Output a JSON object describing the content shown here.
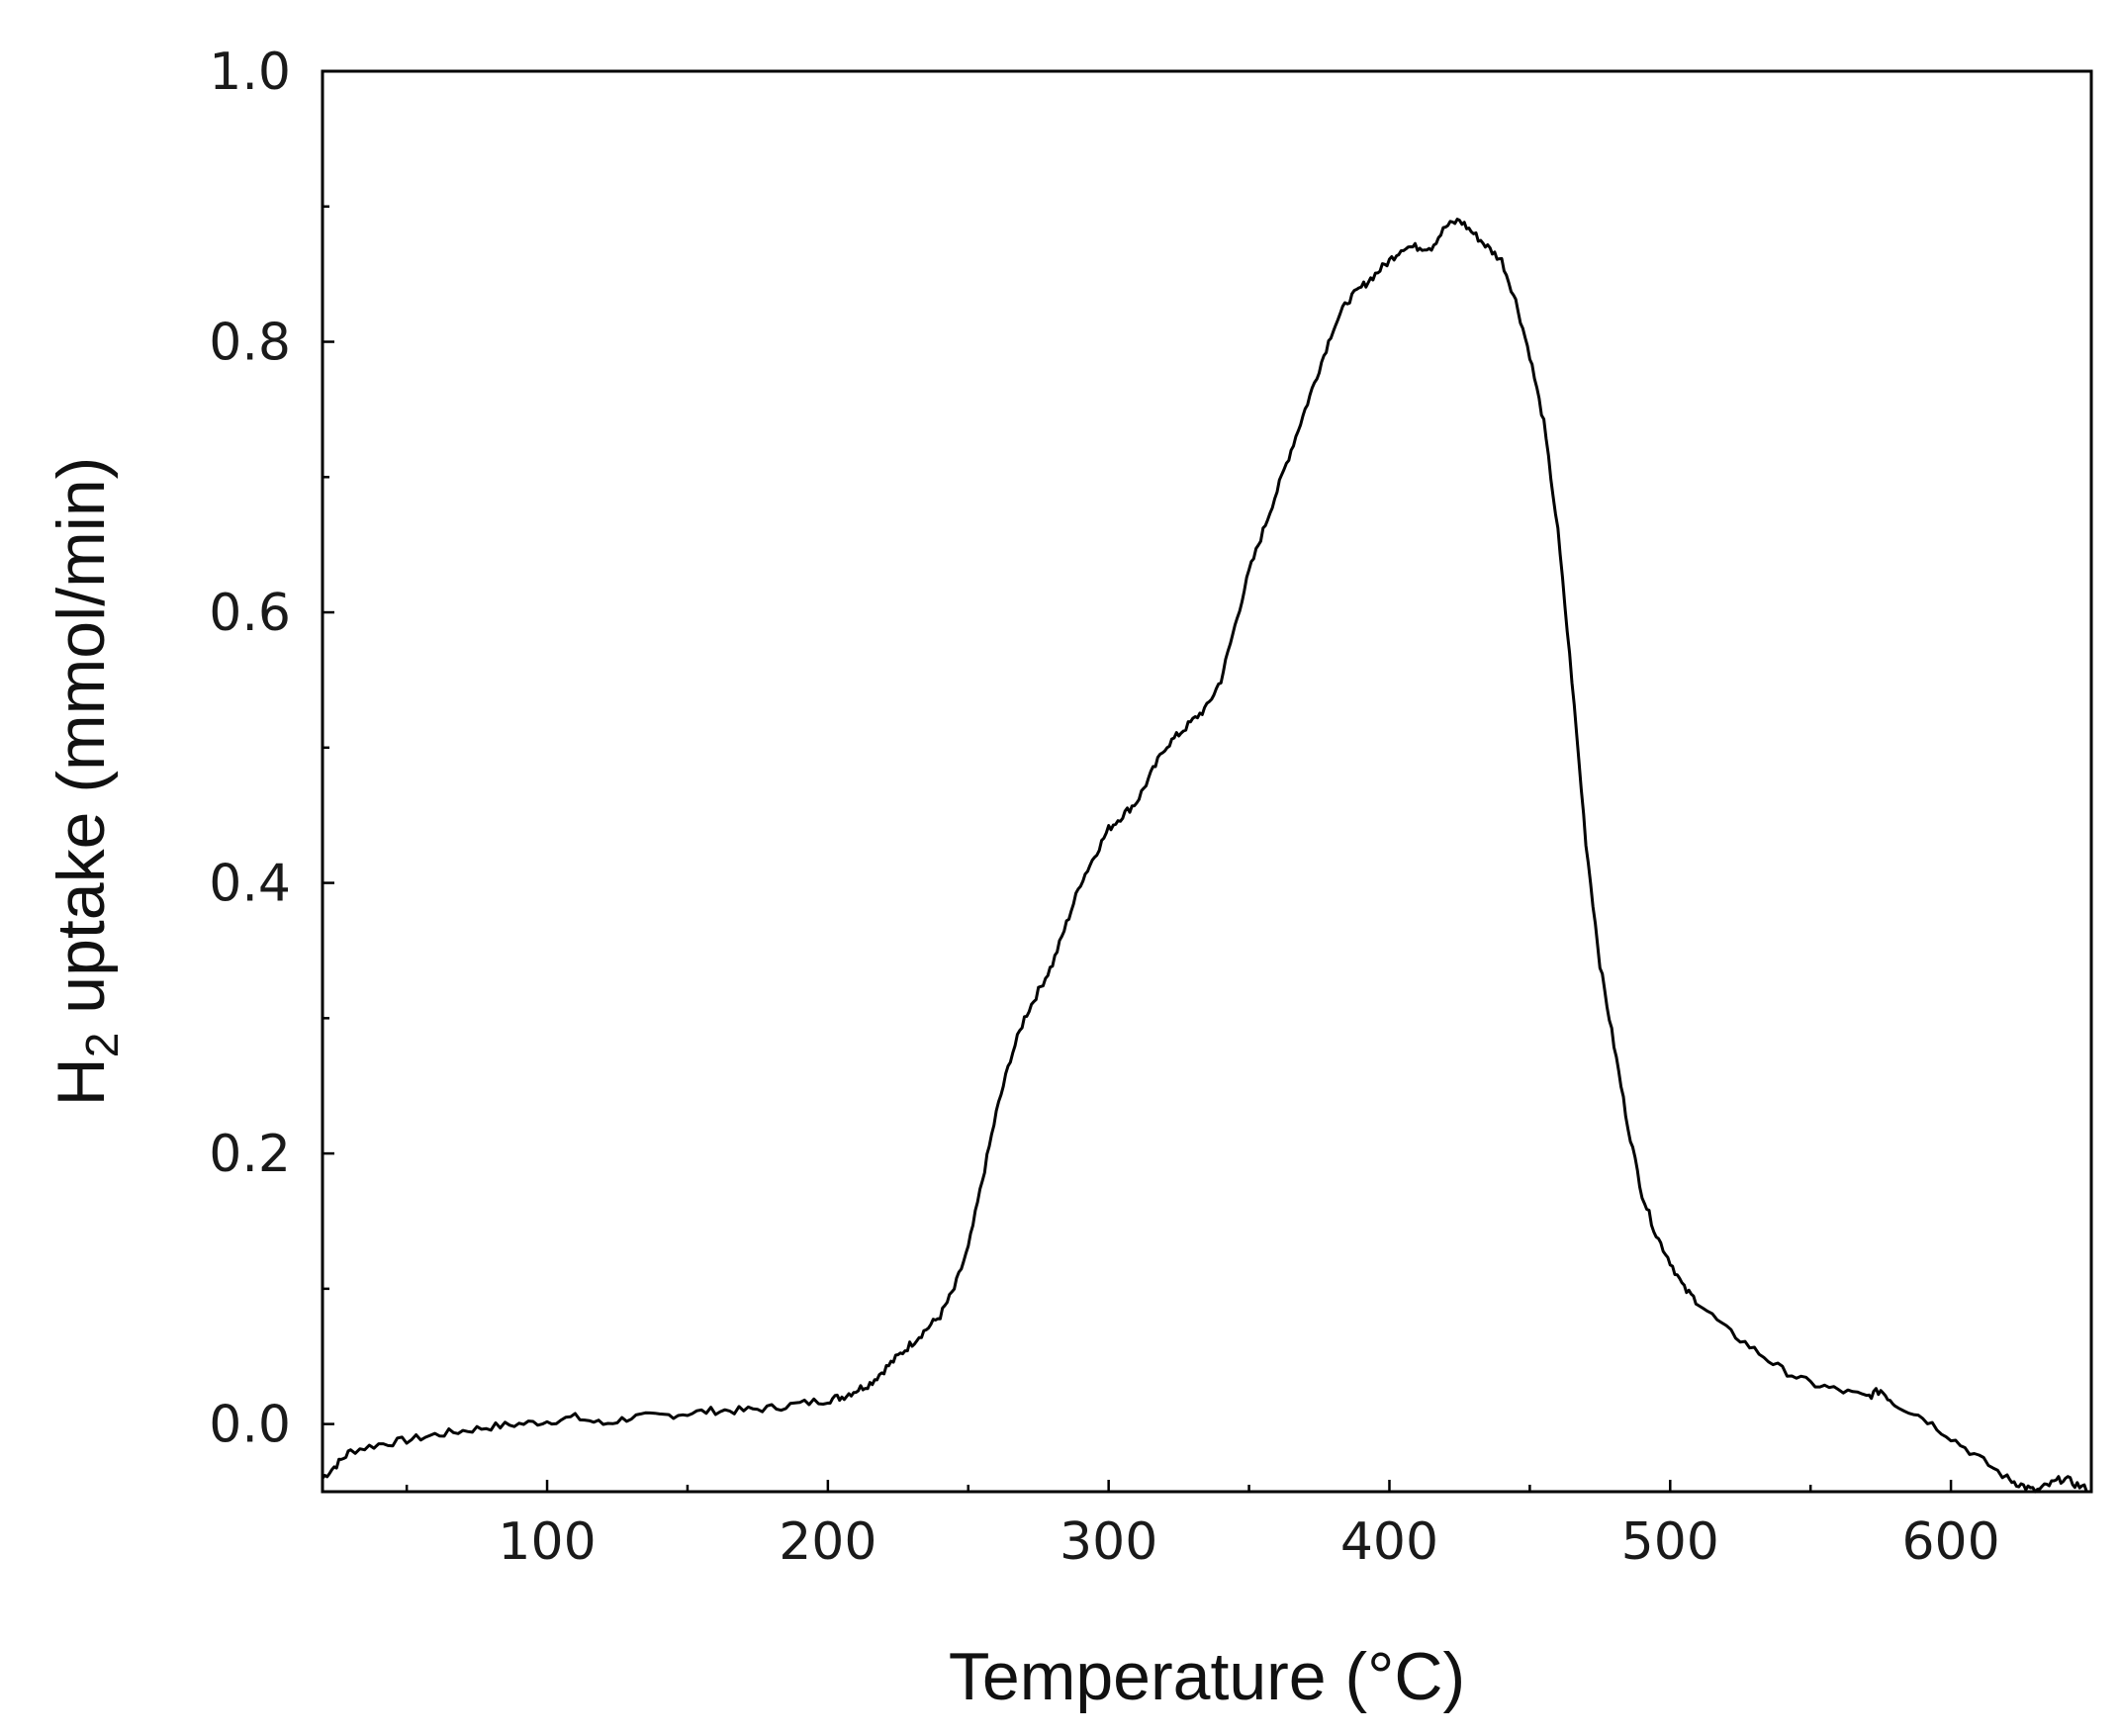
{
  "chart_data": {
    "type": "line",
    "title": "",
    "xlabel": "Temperature (°C)",
    "ylabel_main": "H",
    "ylabel_sub": "2",
    "ylabel_rest": " uptake (mmol/min)",
    "xlim": [
      20,
      650
    ],
    "ylim": [
      -0.05,
      1.0
    ],
    "x_ticks": [
      100,
      200,
      300,
      400,
      500,
      600
    ],
    "x_ticks_minor": [
      50,
      150,
      250,
      350,
      450,
      550,
      650
    ],
    "x_tick_labels": [
      "100",
      "200",
      "300",
      "400",
      "500",
      "600"
    ],
    "y_ticks": [
      0.0,
      0.2,
      0.4,
      0.6,
      0.8,
      1.0
    ],
    "y_ticks_minor": [
      0.1,
      0.3,
      0.5,
      0.7,
      0.9
    ],
    "y_tick_labels": [
      "0.0",
      "0.2",
      "0.4",
      "0.6",
      "0.8",
      "1.0"
    ],
    "grid": false,
    "series": [
      {
        "x": [
          20,
          25,
          30,
          40,
          50,
          60,
          70,
          80,
          90,
          100,
          110,
          120,
          130,
          140,
          150,
          160,
          170,
          180,
          190,
          200,
          205,
          210,
          215,
          220,
          225,
          230,
          235,
          240,
          245,
          250,
          255,
          260,
          265,
          270,
          275,
          280,
          285,
          290,
          295,
          300,
          305,
          310,
          315,
          320,
          325,
          330,
          335,
          340,
          345,
          350,
          355,
          360,
          365,
          370,
          375,
          380,
          385,
          390,
          395,
          400,
          405,
          410,
          415,
          420,
          425,
          430,
          435,
          440,
          445,
          450,
          455,
          460,
          465,
          470,
          475,
          480,
          485,
          490,
          495,
          500,
          505,
          510,
          520,
          530,
          540,
          550,
          560,
          570,
          575,
          580,
          590,
          600,
          610,
          620,
          625,
          630,
          635,
          640,
          645,
          650
        ],
        "y": [
          -0.04,
          -0.03,
          -0.02,
          -0.015,
          -0.012,
          -0.008,
          -0.005,
          -0.002,
          0.0,
          0.002,
          0.005,
          0.0,
          0.005,
          0.006,
          0.008,
          0.01,
          0.01,
          0.012,
          0.015,
          0.018,
          0.02,
          0.025,
          0.03,
          0.04,
          0.05,
          0.06,
          0.07,
          0.08,
          0.1,
          0.13,
          0.18,
          0.23,
          0.27,
          0.3,
          0.32,
          0.34,
          0.37,
          0.4,
          0.42,
          0.44,
          0.45,
          0.46,
          0.48,
          0.5,
          0.51,
          0.52,
          0.53,
          0.55,
          0.59,
          0.63,
          0.66,
          0.69,
          0.72,
          0.75,
          0.78,
          0.81,
          0.83,
          0.84,
          0.85,
          0.86,
          0.87,
          0.87,
          0.87,
          0.885,
          0.89,
          0.88,
          0.87,
          0.86,
          0.83,
          0.79,
          0.74,
          0.66,
          0.55,
          0.43,
          0.34,
          0.28,
          0.22,
          0.17,
          0.14,
          0.12,
          0.1,
          0.09,
          0.07,
          0.055,
          0.04,
          0.03,
          0.025,
          0.02,
          0.025,
          0.015,
          0.005,
          -0.01,
          -0.025,
          -0.04,
          -0.045,
          -0.05,
          -0.045,
          -0.04,
          -0.045,
          -0.05
        ]
      }
    ]
  }
}
